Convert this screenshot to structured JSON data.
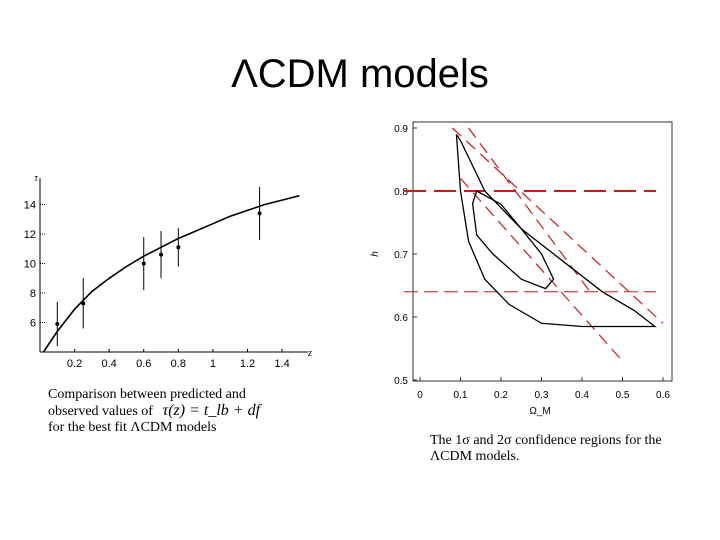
{
  "slide": {
    "title": "ΛCDM models",
    "caption_left": {
      "line1": "Comparison between predicted and",
      "line2": "observed values of",
      "formula": "τ(z) = t_lb + df",
      "line3": "for the best fit ΛCDM models"
    },
    "caption_right": {
      "line1": "The 1σ and 2σ confidence regions for the",
      "line2": "ΛCDM models."
    }
  },
  "chart_data": [
    {
      "type": "scatter",
      "xlabel": "z",
      "ylabel": "τ",
      "xlim": [
        0,
        1.55
      ],
      "ylim": [
        4,
        15.8
      ],
      "x_ticks": [
        0.2,
        0.4,
        0.6,
        0.8,
        1,
        1.2,
        1.4
      ],
      "y_ticks": [
        6,
        8,
        10,
        12,
        14
      ],
      "points": [
        {
          "x": 0.1,
          "y": 5.9,
          "err": 1.5
        },
        {
          "x": 0.25,
          "y": 7.3,
          "err": 1.7
        },
        {
          "x": 0.6,
          "y": 10.0,
          "err": 1.8
        },
        {
          "x": 0.7,
          "y": 10.6,
          "err": 1.6
        },
        {
          "x": 0.8,
          "y": 11.1,
          "err": 1.3
        },
        {
          "x": 1.27,
          "y": 13.4,
          "err": 1.8
        }
      ],
      "model_curve": {
        "x": [
          0.02,
          0.1,
          0.2,
          0.3,
          0.4,
          0.5,
          0.6,
          0.7,
          0.8,
          0.9,
          1.0,
          1.1,
          1.2,
          1.3,
          1.4,
          1.5
        ],
        "y": [
          4.0,
          5.4,
          6.9,
          8.1,
          9.0,
          9.8,
          10.5,
          11.1,
          11.7,
          12.2,
          12.7,
          13.2,
          13.6,
          14.0,
          14.3,
          14.6
        ]
      }
    },
    {
      "type": "line",
      "xlabel": "Ω_M",
      "ylabel": "h",
      "xlim": [
        0,
        0.62
      ],
      "ylim": [
        0.5,
        0.9
      ],
      "x_ticks": [
        0,
        0.1,
        0.2,
        0.3,
        0.4,
        0.5,
        0.6
      ],
      "y_ticks": [
        0.5,
        0.6,
        0.7,
        0.8,
        0.9
      ],
      "contour_1sigma": [
        [
          0.14,
          0.8
        ],
        [
          0.2,
          0.779
        ],
        [
          0.25,
          0.74
        ],
        [
          0.3,
          0.7
        ],
        [
          0.33,
          0.66
        ],
        [
          0.31,
          0.645
        ],
        [
          0.25,
          0.66
        ],
        [
          0.18,
          0.7
        ],
        [
          0.14,
          0.73
        ],
        [
          0.13,
          0.78
        ],
        [
          0.14,
          0.8
        ]
      ],
      "contour_2sigma": [
        [
          0.09,
          0.89
        ],
        [
          0.1,
          0.88
        ],
        [
          0.16,
          0.8
        ],
        [
          0.25,
          0.74
        ],
        [
          0.35,
          0.69
        ],
        [
          0.45,
          0.64
        ],
        [
          0.53,
          0.61
        ],
        [
          0.58,
          0.585
        ],
        [
          0.5,
          0.585
        ],
        [
          0.4,
          0.585
        ],
        [
          0.3,
          0.59
        ],
        [
          0.22,
          0.62
        ],
        [
          0.16,
          0.66
        ],
        [
          0.12,
          0.72
        ],
        [
          0.1,
          0.8
        ],
        [
          0.09,
          0.89
        ]
      ],
      "horizontal_lines": [
        {
          "y": 0.8,
          "style": "long-dash",
          "x_range": [
            0,
            0.6
          ]
        },
        {
          "y": 0.64,
          "style": "dash",
          "x_range": [
            0,
            0.6
          ]
        }
      ],
      "diagonal_lines": [
        {
          "from": [
            0.08,
            0.9
          ],
          "to": [
            0.6,
            0.59
          ]
        },
        {
          "from": [
            0.12,
            0.9
          ],
          "to": [
            0.42,
            0.64
          ]
        },
        {
          "from": [
            0.1,
            0.82
          ],
          "to": [
            0.5,
            0.53
          ]
        }
      ],
      "colors": {
        "contour": "#000000",
        "constraints": "#cc1a1a"
      }
    }
  ]
}
